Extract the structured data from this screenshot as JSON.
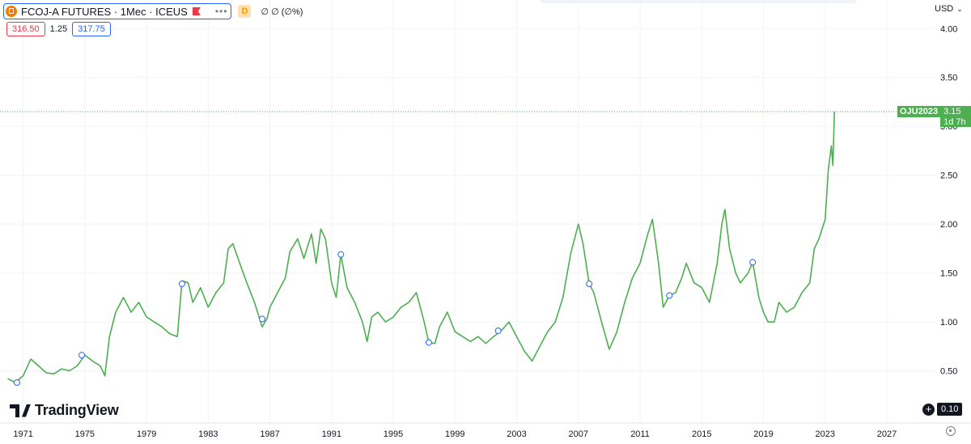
{
  "header": {
    "symbol_title": "FCOJ-A FUTURES · 1Mec · ICEUS",
    "delay_badge": "D",
    "change_text": "∅ ∅ (∅%)",
    "bid": "316.50",
    "spread": "1.25",
    "ask": "317.75",
    "currency": "USD"
  },
  "price_tag": {
    "name": "OJU2023",
    "price": "3.15",
    "countdown": "1d 7h"
  },
  "logo_text": "TradingView",
  "zoom_value": "0.10",
  "colors": {
    "line": "#4caf50",
    "bid": "#f23645",
    "ask": "#2962ff",
    "grid": "#f0f3fa"
  },
  "icons": [
    "orange-juice-symbol-icon",
    "flag-icon",
    "more-icon",
    "plus-icon",
    "settings-icon",
    "tradingview-logo-icon"
  ],
  "chart_data": {
    "type": "line",
    "title": "",
    "xlabel": "",
    "ylabel": "",
    "x_ticks": [
      "1971",
      "1975",
      "1979",
      "1983",
      "1987",
      "1991",
      "1995",
      "1999",
      "2003",
      "2007",
      "2011",
      "2015",
      "2019",
      "2023",
      "2027"
    ],
    "y_ticks": [
      "0.50",
      "1.00",
      "1.50",
      "2.00",
      "2.50",
      "3.00",
      "3.50",
      "4.00"
    ],
    "xlim": [
      1969.5,
      2030.2
    ],
    "ylim": [
      0.0,
      4.06
    ],
    "last_value": 3.15,
    "events_markers": [
      {
        "x": 1970.6,
        "y": 0.38
      },
      {
        "x": 1974.8,
        "y": 0.66
      },
      {
        "x": 1981.3,
        "y": 1.39
      },
      {
        "x": 1986.5,
        "y": 1.03
      },
      {
        "x": 1991.6,
        "y": 1.69
      },
      {
        "x": 1997.3,
        "y": 0.79
      },
      {
        "x": 2001.8,
        "y": 0.91
      },
      {
        "x": 2007.7,
        "y": 1.39
      },
      {
        "x": 2012.9,
        "y": 1.27
      },
      {
        "x": 2018.3,
        "y": 1.61
      }
    ],
    "series": [
      {
        "values": [
          [
            1970.0,
            0.42
          ],
          [
            1970.5,
            0.38
          ],
          [
            1971.0,
            0.45
          ],
          [
            1971.5,
            0.62
          ],
          [
            1972.0,
            0.55
          ],
          [
            1972.5,
            0.48
          ],
          [
            1973.0,
            0.47
          ],
          [
            1973.5,
            0.52
          ],
          [
            1974.0,
            0.5
          ],
          [
            1974.5,
            0.55
          ],
          [
            1975.0,
            0.66
          ],
          [
            1975.5,
            0.6
          ],
          [
            1976.0,
            0.55
          ],
          [
            1976.3,
            0.45
          ],
          [
            1976.6,
            0.85
          ],
          [
            1977.0,
            1.1
          ],
          [
            1977.5,
            1.25
          ],
          [
            1978.0,
            1.1
          ],
          [
            1978.5,
            1.2
          ],
          [
            1979.0,
            1.05
          ],
          [
            1979.5,
            1.0
          ],
          [
            1980.0,
            0.95
          ],
          [
            1980.5,
            0.88
          ],
          [
            1981.0,
            0.85
          ],
          [
            1981.3,
            1.42
          ],
          [
            1981.7,
            1.4
          ],
          [
            1982.0,
            1.2
          ],
          [
            1982.5,
            1.35
          ],
          [
            1983.0,
            1.15
          ],
          [
            1983.5,
            1.3
          ],
          [
            1984.0,
            1.4
          ],
          [
            1984.3,
            1.75
          ],
          [
            1984.6,
            1.8
          ],
          [
            1985.0,
            1.62
          ],
          [
            1985.5,
            1.4
          ],
          [
            1986.0,
            1.2
          ],
          [
            1986.5,
            0.95
          ],
          [
            1986.8,
            1.03
          ],
          [
            1987.0,
            1.15
          ],
          [
            1987.5,
            1.3
          ],
          [
            1988.0,
            1.45
          ],
          [
            1988.3,
            1.72
          ],
          [
            1988.8,
            1.85
          ],
          [
            1989.2,
            1.65
          ],
          [
            1989.7,
            1.9
          ],
          [
            1990.0,
            1.6
          ],
          [
            1990.3,
            1.95
          ],
          [
            1990.6,
            1.85
          ],
          [
            1991.0,
            1.4
          ],
          [
            1991.3,
            1.25
          ],
          [
            1991.6,
            1.69
          ],
          [
            1992.0,
            1.35
          ],
          [
            1992.5,
            1.2
          ],
          [
            1993.0,
            1.0
          ],
          [
            1993.3,
            0.8
          ],
          [
            1993.6,
            1.05
          ],
          [
            1994.0,
            1.1
          ],
          [
            1994.5,
            1.0
          ],
          [
            1995.0,
            1.05
          ],
          [
            1995.5,
            1.15
          ],
          [
            1996.0,
            1.2
          ],
          [
            1996.5,
            1.3
          ],
          [
            1997.0,
            1.0
          ],
          [
            1997.3,
            0.79
          ],
          [
            1997.7,
            0.78
          ],
          [
            1998.0,
            0.95
          ],
          [
            1998.5,
            1.1
          ],
          [
            1999.0,
            0.9
          ],
          [
            1999.5,
            0.85
          ],
          [
            2000.0,
            0.8
          ],
          [
            2000.5,
            0.85
          ],
          [
            2001.0,
            0.78
          ],
          [
            2001.5,
            0.85
          ],
          [
            2002.0,
            0.91
          ],
          [
            2002.5,
            1.0
          ],
          [
            2003.0,
            0.85
          ],
          [
            2003.5,
            0.7
          ],
          [
            2004.0,
            0.6
          ],
          [
            2004.5,
            0.75
          ],
          [
            2005.0,
            0.9
          ],
          [
            2005.5,
            1.0
          ],
          [
            2006.0,
            1.25
          ],
          [
            2006.5,
            1.7
          ],
          [
            2007.0,
            2.0
          ],
          [
            2007.3,
            1.8
          ],
          [
            2007.7,
            1.39
          ],
          [
            2008.0,
            1.3
          ],
          [
            2008.5,
            1.0
          ],
          [
            2009.0,
            0.72
          ],
          [
            2009.5,
            0.9
          ],
          [
            2010.0,
            1.2
          ],
          [
            2010.5,
            1.45
          ],
          [
            2011.0,
            1.6
          ],
          [
            2011.5,
            1.9
          ],
          [
            2011.8,
            2.05
          ],
          [
            2012.2,
            1.6
          ],
          [
            2012.5,
            1.15
          ],
          [
            2012.9,
            1.27
          ],
          [
            2013.3,
            1.3
          ],
          [
            2013.7,
            1.45
          ],
          [
            2014.0,
            1.6
          ],
          [
            2014.5,
            1.4
          ],
          [
            2015.0,
            1.35
          ],
          [
            2015.5,
            1.2
          ],
          [
            2016.0,
            1.6
          ],
          [
            2016.3,
            2.0
          ],
          [
            2016.5,
            2.15
          ],
          [
            2016.8,
            1.75
          ],
          [
            2017.2,
            1.5
          ],
          [
            2017.5,
            1.4
          ],
          [
            2018.0,
            1.5
          ],
          [
            2018.3,
            1.61
          ],
          [
            2018.7,
            1.25
          ],
          [
            2019.0,
            1.1
          ],
          [
            2019.3,
            1.0
          ],
          [
            2019.7,
            1.0
          ],
          [
            2020.0,
            1.2
          ],
          [
            2020.5,
            1.1
          ],
          [
            2021.0,
            1.15
          ],
          [
            2021.5,
            1.3
          ],
          [
            2022.0,
            1.4
          ],
          [
            2022.3,
            1.75
          ],
          [
            2022.6,
            1.85
          ],
          [
            2023.0,
            2.05
          ],
          [
            2023.2,
            2.55
          ],
          [
            2023.4,
            2.8
          ],
          [
            2023.5,
            2.6
          ],
          [
            2023.6,
            3.15
          ]
        ]
      }
    ]
  }
}
